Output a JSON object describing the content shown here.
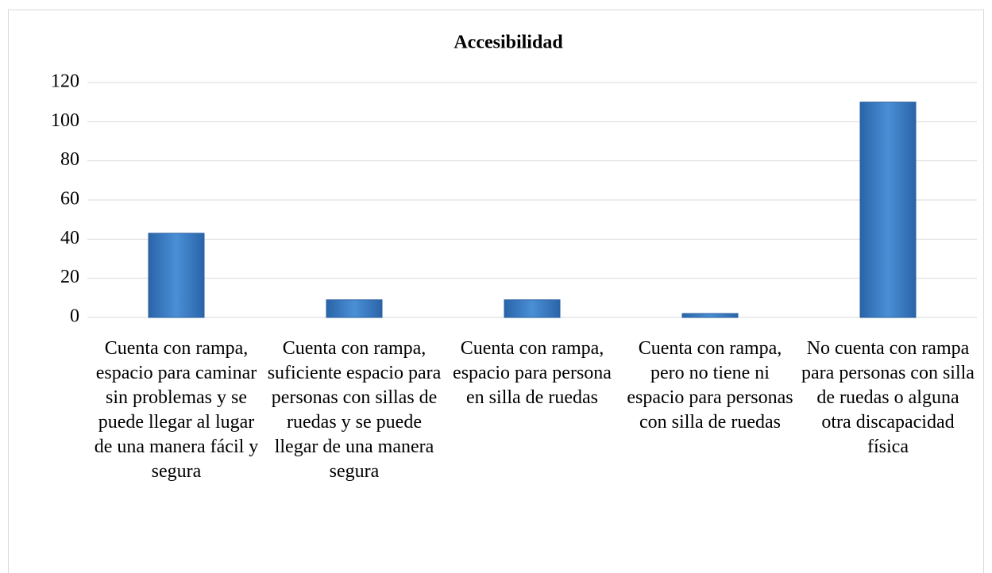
{
  "chart_data": {
    "type": "bar",
    "title": "Accesibilidad",
    "categories": [
      "Cuenta con rampa, espacio para caminar sin problemas y se puede llegar al lugar de una manera fácil y segura",
      "Cuenta con rampa, suficiente espacio para personas con sillas de ruedas y se puede llegar de una manera segura",
      "Cuenta con rampa, espacio para persona en silla de ruedas",
      "Cuenta con rampa, pero no tiene ni espacio para personas con silla de ruedas",
      "No cuenta con rampa para personas con silla de ruedas o alguna otra discapacidad física"
    ],
    "values": [
      43,
      9,
      9,
      2,
      110
    ],
    "color": "#3a7cc4",
    "ylim": [
      0,
      120
    ],
    "yticks": [
      0,
      20,
      40,
      60,
      80,
      100,
      120
    ],
    "grid": true
  }
}
